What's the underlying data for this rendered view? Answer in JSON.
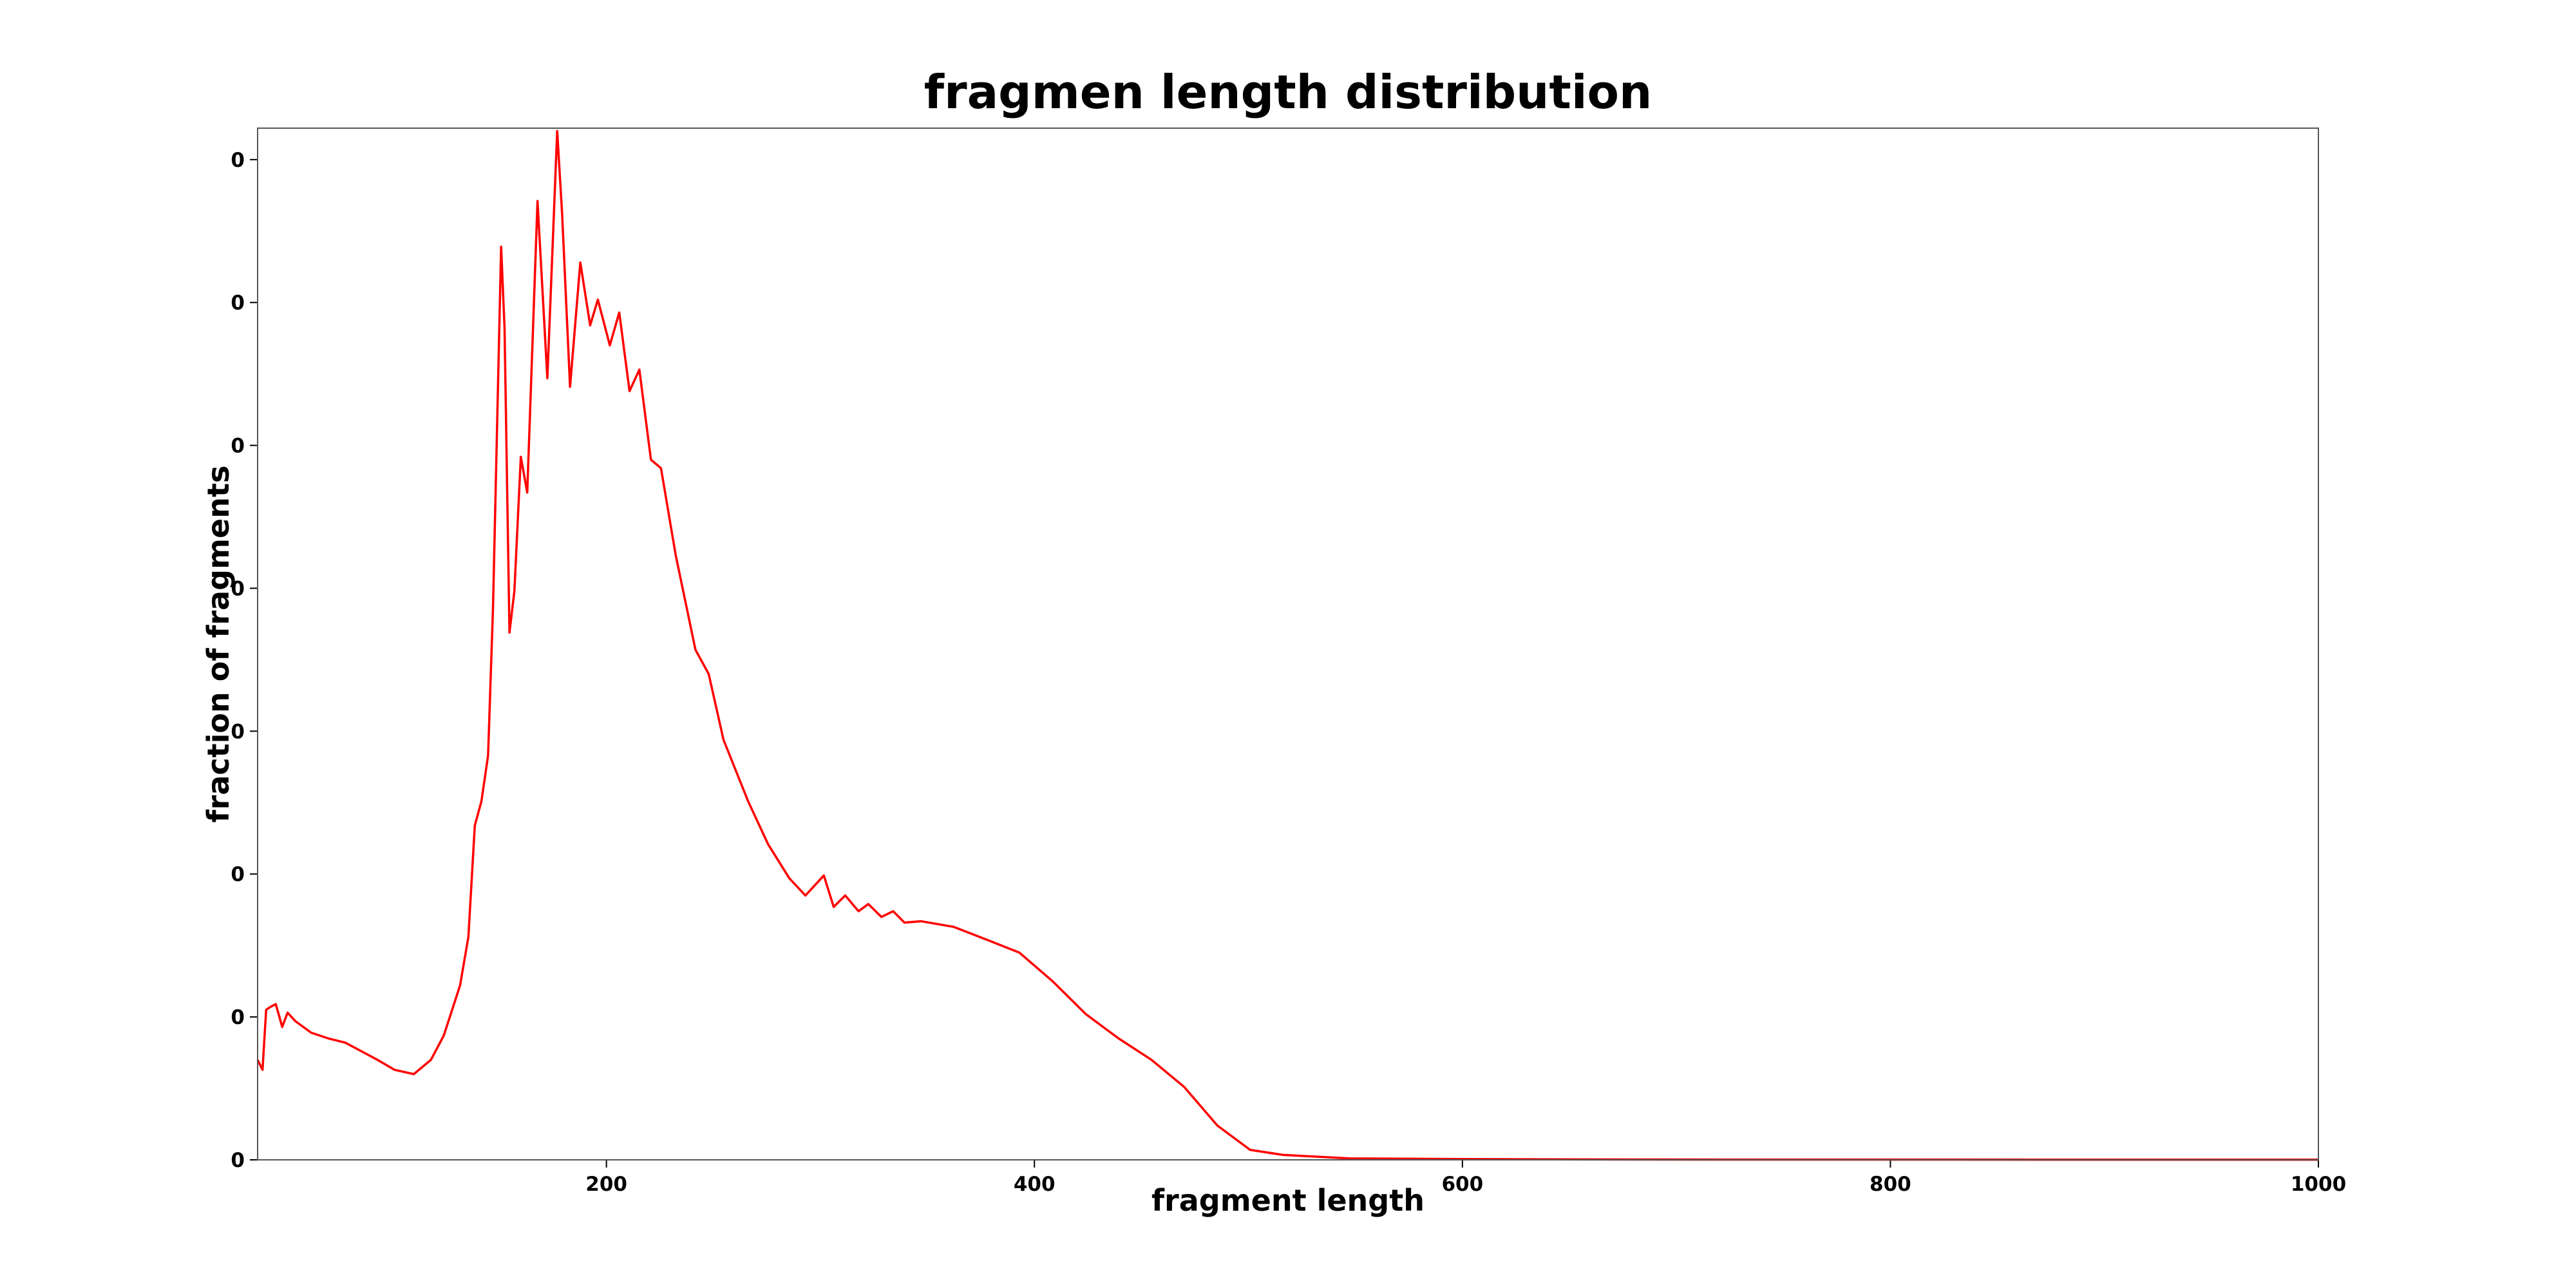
{
  "chart_data": {
    "type": "line",
    "title": "fragmen length distribution",
    "x_label": "fragment length",
    "y_label": "fraction of fragments",
    "xlim": [
      37,
      1000
    ],
    "xticks": [
      200,
      400,
      600,
      800,
      1000
    ],
    "ylim": [
      0,
      0.00722
    ],
    "yticks": [
      0,
      {
        "value": 0.001,
        "label": "0"
      },
      {
        "value": 0.002,
        "label": "0"
      },
      {
        "value": 0.003,
        "label": "0"
      },
      {
        "value": 0.004,
        "label": "0"
      },
      {
        "value": 0.005,
        "label": "0"
      },
      {
        "value": 0.006,
        "label": "0"
      },
      {
        "value": 0.007,
        "label": "0"
      }
    ],
    "x": [
      37,
      39.3,
      41,
      43,
      45.5,
      48.5,
      51,
      54.7,
      62,
      70,
      78,
      85.5,
      93,
      101,
      110,
      118,
      124,
      131.6,
      135.5,
      138.5,
      141.6,
      144.7,
      147,
      150.8,
      152.4,
      154.7,
      157,
      160,
      163,
      167.8,
      172.4,
      177,
      179.3,
      183,
      187.8,
      192.4,
      196,
      201.6,
      206,
      210.8,
      215.4,
      220.8,
      225.5,
      232.4,
      241.6,
      247.8,
      254.7,
      266.2,
      275.5,
      285.5,
      293,
      301.6,
      306.2,
      311.6,
      317.8,
      322.4,
      328.5,
      334,
      339.3,
      347,
      362.4,
      377.8,
      393,
      408.5,
      424,
      439.3,
      454.7,
      470,
      485.5,
      500.8,
      516,
      547,
      608.5,
      685,
      1000
    ],
    "series": [
      {
        "name": "fragment length",
        "color": "#ff0000",
        "values": [
          0.0007,
          0.00063,
          0.00105,
          0.00107,
          0.00109,
          0.00093,
          0.00103,
          0.00097,
          0.00089,
          0.00085,
          0.00082,
          0.00076,
          0.0007,
          0.00063,
          0.0006,
          0.0007,
          0.00087,
          0.00122,
          0.00156,
          0.00234,
          0.00251,
          0.00283,
          0.00386,
          0.00639,
          0.00582,
          0.00369,
          0.00398,
          0.00492,
          0.00467,
          0.00671,
          0.00547,
          0.0072,
          0.00662,
          0.00541,
          0.00628,
          0.00584,
          0.00602,
          0.0057,
          0.00593,
          0.00538,
          0.00553,
          0.0049,
          0.00484,
          0.00423,
          0.00357,
          0.0034,
          0.00294,
          0.00251,
          0.00221,
          0.00197,
          0.00185,
          0.00199,
          0.00177,
          0.00185,
          0.00174,
          0.00179,
          0.0017,
          0.00174,
          0.00166,
          0.00167,
          0.00163,
          0.00154,
          0.00145,
          0.00125,
          0.00102,
          0.00085,
          0.0007,
          0.00051,
          0.00024,
          7e-05,
          3.5e-05,
          1e-05,
          5e-06,
          2e-06,
          1e-06
        ]
      }
    ]
  }
}
